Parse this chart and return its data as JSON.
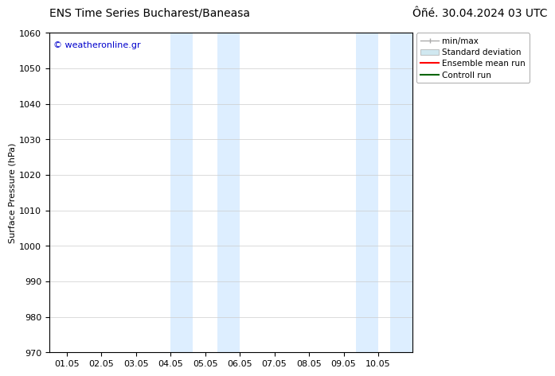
{
  "title_left": "ENS Time Series Bucharest/Baneasa",
  "title_right": "Ôñé. 30.04.2024 03 UTC",
  "ylabel": "Surface Pressure (hPa)",
  "ylim": [
    970,
    1060
  ],
  "yticks": [
    970,
    980,
    990,
    1000,
    1010,
    1020,
    1030,
    1040,
    1050,
    1060
  ],
  "x_labels": [
    "01.05",
    "02.05",
    "03.05",
    "04.05",
    "05.05",
    "06.05",
    "07.05",
    "08.05",
    "09.05",
    "10.05"
  ],
  "x_positions": [
    0,
    1,
    2,
    3,
    4,
    5,
    6,
    7,
    8,
    9
  ],
  "xlim": [
    -0.5,
    10.0
  ],
  "shaded_bands": [
    {
      "x_start": 3.0,
      "x_end": 3.65,
      "color": "#ddeeff"
    },
    {
      "x_start": 4.35,
      "x_end": 5.0,
      "color": "#ddeeff"
    },
    {
      "x_start": 8.35,
      "x_end": 9.0,
      "color": "#ddeeff"
    },
    {
      "x_start": 9.35,
      "x_end": 10.0,
      "color": "#ddeeff"
    }
  ],
  "watermark": "© weatheronline.gr",
  "watermark_color": "#0000cc",
  "legend_items": [
    {
      "label": "min/max",
      "color": "#aaaaaa",
      "lw": 1.0
    },
    {
      "label": "Standard deviation",
      "color": "#d0e8f0",
      "lw": 6
    },
    {
      "label": "Ensemble mean run",
      "color": "#ff0000",
      "lw": 1.5
    },
    {
      "label": "Controll run",
      "color": "#006400",
      "lw": 1.5
    }
  ],
  "bg_color": "#ffffff",
  "plot_bg_color": "#ffffff",
  "border_color": "#000000",
  "grid_color": "#cccccc",
  "title_fontsize": 10,
  "tick_fontsize": 8,
  "ylabel_fontsize": 8,
  "legend_fontsize": 7.5
}
